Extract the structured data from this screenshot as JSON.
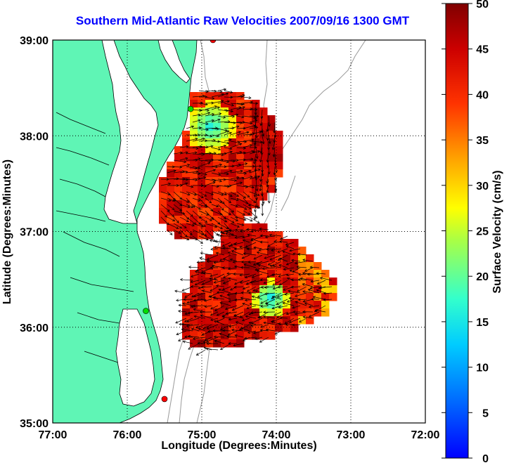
{
  "title": "Southern Mid-Atlantic Raw Velocities 2007/09/16 1300 GMT",
  "chart_data": {
    "type": "map",
    "xlabel": "Longitude (Degrees:Minutes)",
    "ylabel": "Latitude (Degrees:Minutes)",
    "xlim": [
      -77,
      -72
    ],
    "ylim": [
      35,
      39
    ],
    "x_ticks": [
      "77:00",
      "76:00",
      "75:00",
      "74:00",
      "73:00",
      "72:00"
    ],
    "y_ticks": [
      "35:00",
      "36:00",
      "37:00",
      "38:00",
      "39:00"
    ],
    "grid": "dotted",
    "colorbar": {
      "label": "Surface Velocity (cm/s)",
      "range": [
        0,
        50
      ],
      "ticks": [
        "0",
        "5",
        "10",
        "15",
        "20",
        "25",
        "30",
        "35",
        "40",
        "45",
        "50"
      ],
      "colormap": "jet"
    },
    "land_color": "#5ff5b5",
    "stations": [
      {
        "lon": -74.85,
        "lat": 39.0,
        "color": "#ff0000"
      },
      {
        "lon": -75.15,
        "lat": 38.28,
        "color": "#00dd00"
      },
      {
        "lon": -75.75,
        "lat": 36.17,
        "color": "#00dd00"
      },
      {
        "lon": -75.5,
        "lat": 35.25,
        "color": "#ff0000"
      }
    ]
  }
}
